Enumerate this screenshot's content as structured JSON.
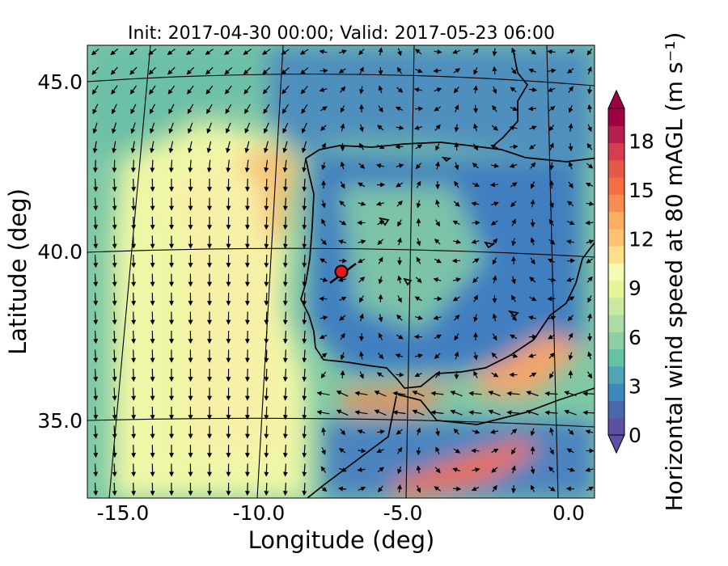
{
  "title": "Init: 2017-04-30 00:00; Valid: 2017-05-23 06:00",
  "xlabel": "Longitude (deg)",
  "ylabel": "Latitude (deg)",
  "colorbar_label": "Horizontal wind speed at 80 mAGL (m s⁻¹)",
  "x_ticks": [
    "-15.0",
    "-10.0",
    "-5.0",
    "0.0"
  ],
  "y_ticks": [
    "35.0",
    "40.0",
    "45.0"
  ],
  "colorbar_ticks": [
    "0",
    "3",
    "6",
    "9",
    "12",
    "15",
    "18"
  ],
  "colormap": [
    "#5e4fa2",
    "#4a68ae",
    "#3f88bb",
    "#4fa4b5",
    "#66c2a5",
    "#8ccfa4",
    "#abdda4",
    "#c9e99e",
    "#e6f598",
    "#f6fbb2",
    "#fee08b",
    "#fdc373",
    "#fdae61",
    "#f88d52",
    "#f46d43",
    "#e45a49",
    "#d53e4f",
    "#b4204d",
    "#9e0142"
  ],
  "chart_data": {
    "type": "map",
    "variable": "Horizontal wind speed at 80 mAGL",
    "units": "m s-1",
    "colorbar_range": [
      0,
      20
    ],
    "colorbar_extend": "both",
    "lon_range": [
      -16,
      0.3
    ],
    "lat_range": [
      32.5,
      46.2
    ],
    "marker": {
      "lon": -7.6,
      "lat": 39.3,
      "color": "#e8191c"
    }
  }
}
